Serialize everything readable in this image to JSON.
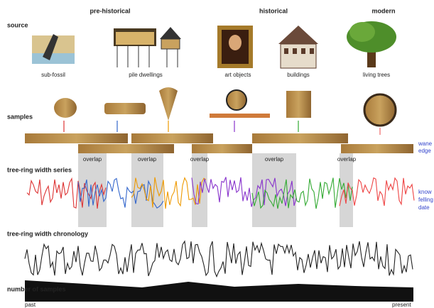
{
  "periods": [
    "pre-historical",
    "historical",
    "modern"
  ],
  "rows": {
    "source": "source",
    "samples": "samples",
    "series": "tree-ring width series",
    "chronology": "tree-ring width chronology",
    "count": "number of samples"
  },
  "sources": [
    "sub-fossil",
    "pile dwellings",
    "art objects",
    "buildings",
    "living trees"
  ],
  "overlaps": [
    "overlap",
    "overlap",
    "overlap",
    "overlap",
    "overlap"
  ],
  "axis": {
    "start": "past",
    "end": "present"
  },
  "annotations": {
    "waney_edge": [
      "wane",
      "edge"
    ],
    "felling": [
      "know",
      "felling",
      "date"
    ]
  }
}
